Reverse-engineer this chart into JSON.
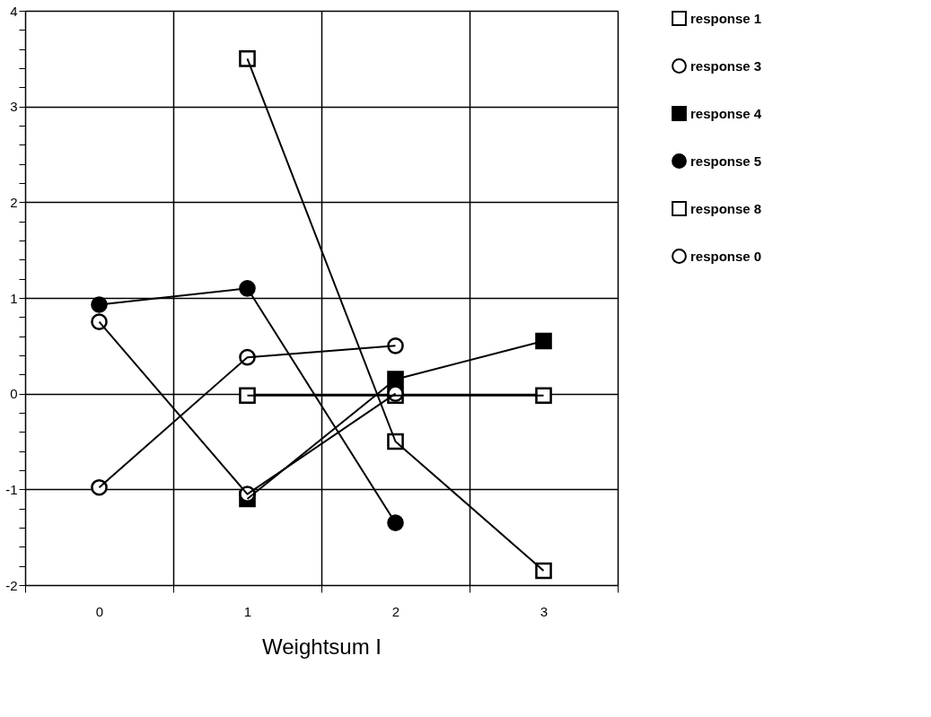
{
  "chart_data": {
    "type": "line",
    "xlabel": "Weightsum I",
    "categories": [
      "0",
      "1",
      "2",
      "3"
    ],
    "ylim": [
      -2,
      4
    ],
    "yticks": [
      {
        "value": -2,
        "label": "-2"
      },
      {
        "value": -1.8,
        "label": null
      },
      {
        "value": -1.6,
        "label": null
      },
      {
        "value": -1.4,
        "label": null
      },
      {
        "value": -1.2,
        "label": null
      },
      {
        "value": -1,
        "label": "-1"
      },
      {
        "value": -0.8,
        "label": null
      },
      {
        "value": -0.6,
        "label": null
      },
      {
        "value": -0.4,
        "label": null
      },
      {
        "value": -0.2,
        "label": null
      },
      {
        "value": 0,
        "label": "0"
      },
      {
        "value": 0.2,
        "label": null
      },
      {
        "value": 0.4,
        "label": null
      },
      {
        "value": 0.6,
        "label": null
      },
      {
        "value": 0.8,
        "label": null
      },
      {
        "value": 1,
        "label": "1"
      },
      {
        "value": 1.2,
        "label": null
      },
      {
        "value": 1.4,
        "label": null
      },
      {
        "value": 1.6,
        "label": null
      },
      {
        "value": 1.8,
        "label": null
      },
      {
        "value": 2,
        "label": "2"
      },
      {
        "value": 2.2,
        "label": null
      },
      {
        "value": 2.4,
        "label": null
      },
      {
        "value": 2.6,
        "label": null
      },
      {
        "value": 2.8,
        "label": null
      },
      {
        "value": 3,
        "label": "3"
      },
      {
        "value": 3.2,
        "label": null
      },
      {
        "value": 3.4,
        "label": null
      },
      {
        "value": 3.6,
        "label": null
      },
      {
        "value": 3.8,
        "label": null
      },
      {
        "value": 4,
        "label": "4"
      }
    ],
    "grid": true,
    "legend": "right",
    "line_style": "solid",
    "series": [
      {
        "name": "response 1",
        "color": "#000000",
        "marker": "square",
        "colors": [
          null,
          "#ffffff",
          "#ffffff",
          "#ffffff"
        ],
        "values": [
          null,
          3.5,
          -0.5,
          -1.85
        ]
      },
      {
        "name": "response 3",
        "color": "#000000",
        "marker": "circle",
        "colors": [
          "#ffffff",
          "#ffffff",
          "#ffffff",
          null
        ],
        "values": [
          -0.98,
          0.38,
          0.5,
          null
        ]
      },
      {
        "name": "response 4",
        "color": "#000000",
        "marker": "square",
        "colors": [
          null,
          "#000000",
          "#000000",
          "#000000"
        ],
        "values": [
          null,
          -1.1,
          0.15,
          0.55
        ]
      },
      {
        "name": "response 5",
        "color": "#000000",
        "marker": "circle",
        "colors": [
          "#000000",
          "#000000",
          "#000000",
          null
        ],
        "values": [
          0.93,
          1.1,
          -1.35,
          null
        ]
      },
      {
        "name": "response 8",
        "color": "#000000",
        "marker": "square",
        "colors": [
          null,
          "#ffffff",
          "#ffffff",
          "#ffffff"
        ],
        "values": [
          null,
          -0.02,
          -0.02,
          -0.02
        ]
      },
      {
        "name": "response 0",
        "color": "#000000",
        "marker": "circle",
        "colors": [
          "#ffffff",
          "#ffffff",
          "#ffffff",
          null
        ],
        "values": [
          0.75,
          -1.05,
          0.0,
          null
        ]
      }
    ]
  }
}
